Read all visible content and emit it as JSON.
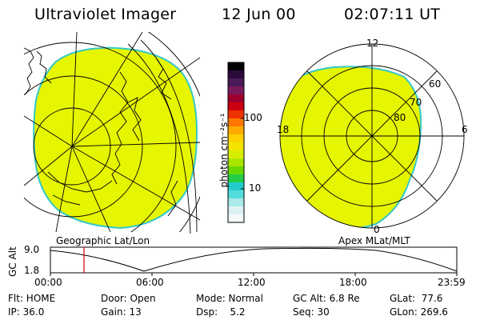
{
  "header": {
    "title": "Ultraviolet Imager",
    "date": "12 Jun 00",
    "time": "02:07:11 UT"
  },
  "colors": {
    "aurora_fill": "#e6f500",
    "aurora_edge": "#33c8c8",
    "cursor": "#cc0000"
  },
  "colorbar": {
    "unit_label": "photon cm⁻²s⁻¹",
    "ticks": [
      "100",
      "10"
    ],
    "colors": [
      "#000000",
      "#2a0a3a",
      "#4a1a5a",
      "#7a1a5a",
      "#a00030",
      "#cc0010",
      "#ee3300",
      "#ff7700",
      "#ffaa00",
      "#ffd000",
      "#f2e400",
      "#d8ee00",
      "#a8e600",
      "#66d800",
      "#22cc44",
      "#22cccc",
      "#55dcdc",
      "#aaeaea",
      "#dcf2f2",
      "#f4fafa"
    ]
  },
  "left_map": {
    "label": "Geographic Lat/Lon"
  },
  "right_map": {
    "label": "Apex MLat/MLT",
    "mlt_labels": {
      "top": "12",
      "left": "18",
      "right": "6",
      "bottom": "0"
    },
    "lat_labels": [
      "60",
      "70",
      "80"
    ]
  },
  "gc_alt_plot": {
    "ylabel": "GC Alt",
    "ytick_high": "9.0",
    "ytick_low": "1.8",
    "xticks": [
      "00:00",
      "06:00",
      "12:00",
      "18:00",
      "23:59"
    ],
    "cursor_time": "02:07:11"
  },
  "info": {
    "filter": "Flt: HOME",
    "ip": "IP: 36.0",
    "door": "Door: Open",
    "gain": "Gain: 13",
    "mode": "Mode: Normal",
    "dsp": "Dsp:    5.2",
    "gc_alt": "GC Alt: 6.8 Re",
    "seq": "Seq: 30",
    "glat": "GLat:  77.6",
    "glon": "GLon: 269.6"
  }
}
